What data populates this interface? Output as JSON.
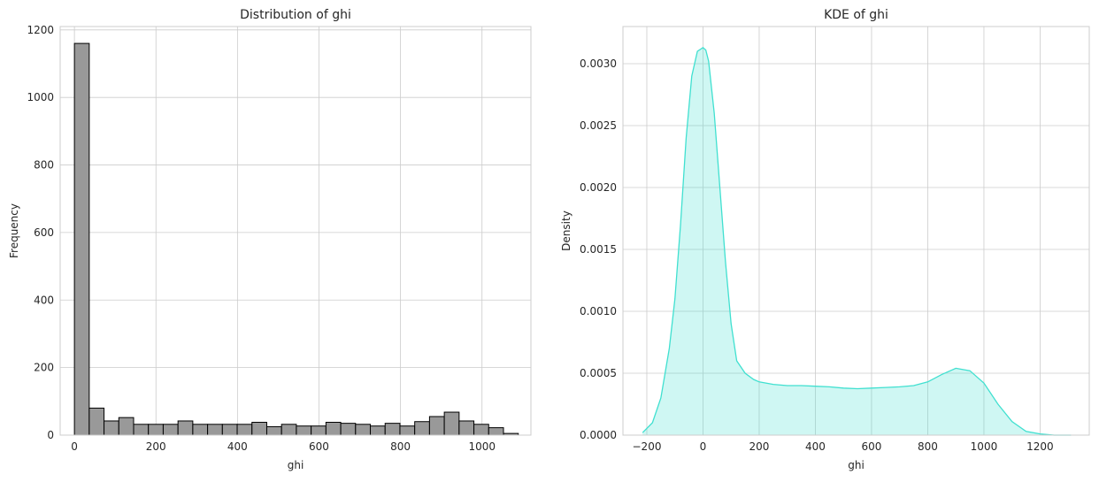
{
  "chart_data": [
    {
      "type": "bar",
      "title": "Distribution of ghi",
      "xlabel": "ghi",
      "ylabel": "Frequency",
      "xlim": [
        -35,
        1120
      ],
      "ylim": [
        0,
        1210
      ],
      "xticks": [
        0,
        200,
        400,
        600,
        800,
        1000
      ],
      "xtick_labels": [
        "0",
        "200",
        "400",
        "600",
        "800",
        "1000"
      ],
      "yticks": [
        0,
        200,
        400,
        600,
        800,
        1000,
        1200
      ],
      "ytick_labels": [
        "0",
        "200",
        "400",
        "600",
        "800",
        "1000",
        "1200"
      ],
      "grid": true,
      "bar_color": "#999999",
      "edge_color": "#000000",
      "bin_start": 0,
      "bin_width": 36.3,
      "values": [
        1160,
        80,
        42,
        52,
        32,
        32,
        32,
        42,
        32,
        32,
        32,
        32,
        38,
        25,
        32,
        27,
        27,
        38,
        35,
        32,
        27,
        35,
        27,
        40,
        55,
        68,
        42,
        32,
        22,
        5
      ]
    },
    {
      "type": "area",
      "title": "KDE of ghi",
      "xlabel": "ghi",
      "ylabel": "Density",
      "xlim": [
        -285,
        1375
      ],
      "ylim": [
        0,
        0.0033
      ],
      "xticks": [
        -200,
        0,
        200,
        400,
        600,
        800,
        1000,
        1200
      ],
      "xtick_labels": [
        "−200",
        "0",
        "200",
        "400",
        "600",
        "800",
        "1000",
        "1200"
      ],
      "yticks": [
        0,
        0.0005,
        0.001,
        0.0015,
        0.002,
        0.0025,
        0.003
      ],
      "ytick_labels": [
        "0.0000",
        "0.0005",
        "0.0010",
        "0.0015",
        "0.0020",
        "0.0025",
        "0.0030"
      ],
      "grid": true,
      "color": "#40e0d0",
      "x": [
        -215,
        -180,
        -150,
        -120,
        -100,
        -80,
        -60,
        -40,
        -20,
        0,
        10,
        20,
        40,
        60,
        80,
        100,
        120,
        150,
        180,
        200,
        250,
        300,
        350,
        400,
        450,
        500,
        550,
        600,
        650,
        700,
        750,
        800,
        850,
        900,
        950,
        1000,
        1050,
        1100,
        1150,
        1200,
        1250,
        1310
      ],
      "y": [
        2e-05,
        0.0001,
        0.0003,
        0.0007,
        0.0011,
        0.0017,
        0.0024,
        0.0029,
        0.0031,
        0.00313,
        0.00311,
        0.00302,
        0.0026,
        0.002,
        0.0014,
        0.0009,
        0.0006,
        0.0005,
        0.00045,
        0.00043,
        0.00041,
        0.0004,
        0.0004,
        0.000395,
        0.00039,
        0.00038,
        0.000375,
        0.00038,
        0.000385,
        0.00039,
        0.0004,
        0.00043,
        0.00049,
        0.00054,
        0.00052,
        0.00042,
        0.00025,
        0.00011,
        3e-05,
        1e-05,
        0.0,
        0.0
      ]
    }
  ]
}
